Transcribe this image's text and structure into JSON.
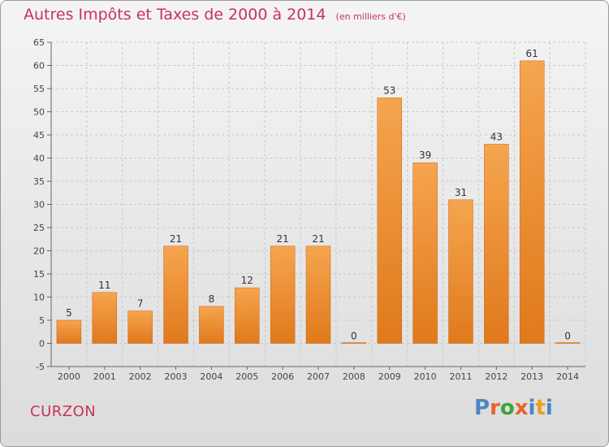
{
  "header": {
    "title": "Autres Impôts et Taxes de 2000 à 2014",
    "unit": "(en milliers d'€)"
  },
  "footer": {
    "commune": "CURZON",
    "logo": "Proxiti",
    "logo_colors": [
      "#4a86c5",
      "#e8632b",
      "#3aa53a",
      "#e8632b",
      "#4a86c5",
      "#e8a020",
      "#4a86c5"
    ]
  },
  "chart_data": {
    "type": "bar",
    "categories": [
      "2000",
      "2001",
      "2002",
      "2003",
      "2004",
      "2005",
      "2006",
      "2007",
      "2008",
      "2009",
      "2010",
      "2011",
      "2012",
      "2013",
      "2014"
    ],
    "values": [
      5,
      11,
      7,
      21,
      8,
      12,
      21,
      21,
      0,
      53,
      39,
      31,
      43,
      61,
      0
    ],
    "ylim": [
      -5,
      65
    ],
    "yticks": [
      -5,
      0,
      5,
      10,
      15,
      20,
      25,
      30,
      35,
      40,
      45,
      50,
      55,
      60,
      65
    ],
    "grid": true,
    "bar_color_light": "#f5a54f",
    "bar_color_dark": "#e0791c"
  }
}
